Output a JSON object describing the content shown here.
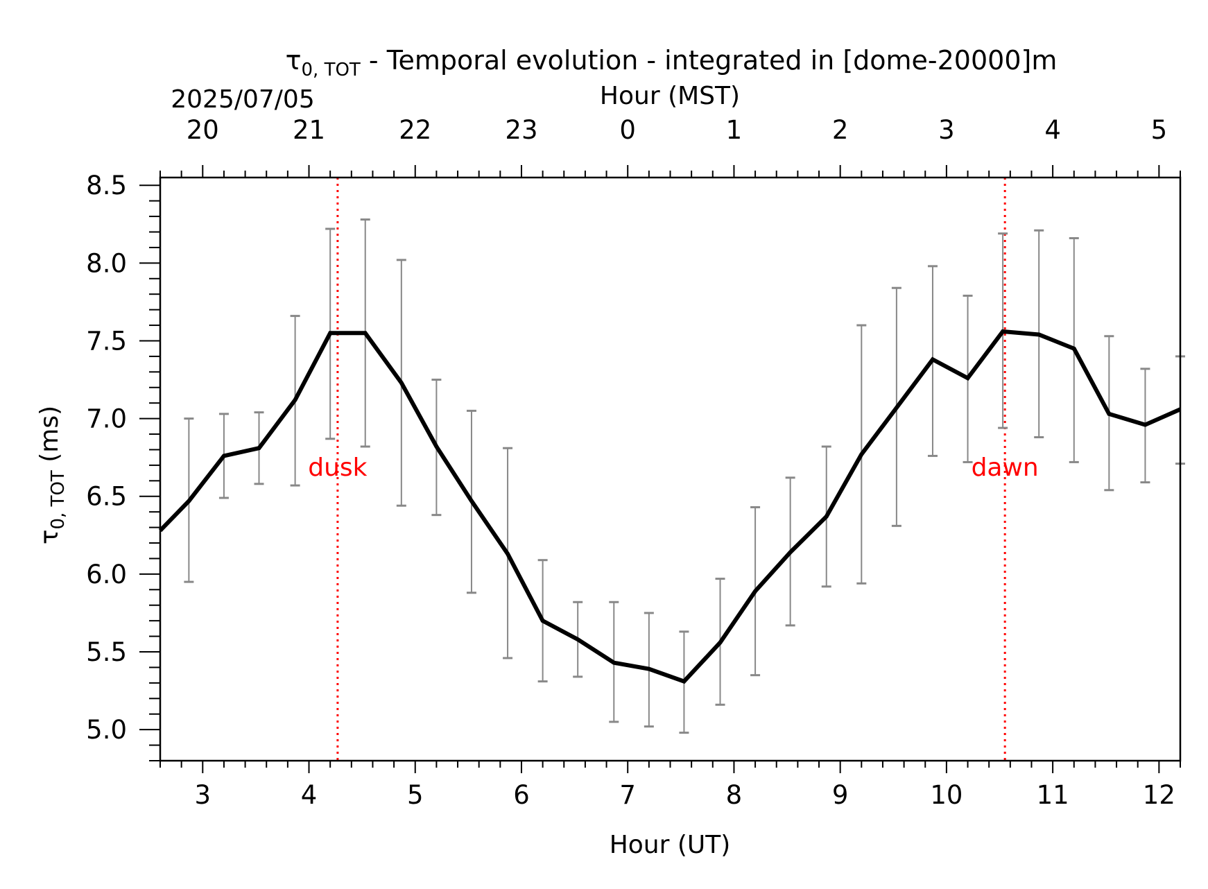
{
  "chart_data": {
    "type": "line",
    "title_parts": {
      "symbol": "τ",
      "subscript": "0, TOT",
      "rest": " - Temporal evolution - integrated in [dome-20000]m"
    },
    "xlabel": "Hour (UT)",
    "top_xlabel": "Hour (MST)",
    "date_label": "2025/07/05",
    "ylabel_parts": {
      "symbol": "τ",
      "subscript": "0, TOT",
      "unit": " (ms)"
    },
    "xlim": [
      2.6,
      12.2
    ],
    "ylim": [
      4.8,
      8.55
    ],
    "x_ticks": [
      "3",
      "4",
      "5",
      "6",
      "7",
      "8",
      "9",
      "10",
      "11",
      "12"
    ],
    "y_ticks": [
      "5.0",
      "5.5",
      "6.0",
      "6.5",
      "7.0",
      "7.5",
      "8.0",
      "8.5"
    ],
    "top_ticks": [
      "20",
      "21",
      "22",
      "23",
      "0",
      "1",
      "2",
      "3",
      "4",
      "5"
    ],
    "series": [
      {
        "x": [
          2.6,
          2.87,
          3.2,
          3.53,
          3.87,
          4.2,
          4.53,
          4.87,
          5.2,
          5.53,
          5.87,
          6.2,
          6.53,
          6.87,
          7.2,
          7.53,
          7.87,
          8.2,
          8.53,
          8.87,
          9.2,
          9.53,
          9.87,
          10.2,
          10.53,
          10.87,
          11.2,
          11.53,
          11.87,
          12.2
        ],
        "y": [
          6.28,
          6.47,
          6.76,
          6.81,
          7.12,
          7.55,
          7.55,
          7.23,
          6.82,
          6.47,
          6.13,
          5.7,
          5.58,
          5.43,
          5.39,
          5.31,
          5.56,
          5.89,
          6.14,
          6.37,
          6.77,
          7.07,
          7.38,
          7.26,
          7.56,
          7.54,
          7.45,
          7.03,
          6.96,
          7.06
        ],
        "err_low": [
          null,
          5.95,
          6.49,
          6.58,
          6.57,
          6.87,
          6.82,
          6.44,
          6.38,
          5.88,
          5.46,
          5.31,
          5.34,
          5.05,
          5.02,
          4.98,
          5.16,
          5.35,
          5.67,
          5.92,
          5.94,
          6.31,
          6.76,
          6.72,
          6.94,
          6.88,
          6.72,
          6.54,
          6.59,
          6.71
        ],
        "err_high": [
          null,
          7.0,
          7.03,
          7.04,
          7.66,
          8.22,
          8.28,
          8.02,
          7.25,
          7.05,
          6.81,
          6.09,
          5.82,
          5.82,
          5.75,
          5.63,
          5.97,
          6.43,
          6.62,
          6.82,
          7.6,
          7.84,
          7.98,
          7.79,
          8.19,
          8.21,
          8.16,
          7.53,
          7.32,
          7.4
        ],
        "color": "#000000",
        "error_color": "#888888"
      }
    ],
    "annotations": [
      {
        "label": "dusk",
        "x": 4.27,
        "color": "#ff0000"
      },
      {
        "label": "dawn",
        "x": 10.55,
        "color": "#ff0000"
      }
    ],
    "grid": false
  }
}
